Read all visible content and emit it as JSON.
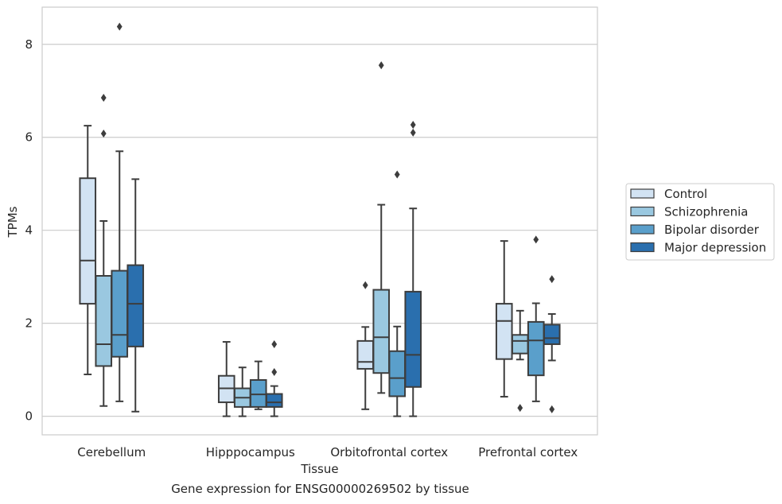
{
  "chart_data": {
    "type": "boxplot",
    "xlabel": "Tissue",
    "ylabel": "TPMs",
    "caption": "Gene expression for ENSG00000269502 by tissue",
    "ylim": [
      -0.4,
      8.8
    ],
    "yticks": [
      "0",
      "2",
      "4",
      "6",
      "8"
    ],
    "grid": "horizontal",
    "legend_position": "right",
    "categories": [
      "Cerebellum",
      "Hipppocampus",
      "Orbitofrontal cortex",
      "Prefrontal cortex"
    ],
    "series": [
      {
        "name": "Control",
        "color": "#d2e3f3",
        "boxes": [
          {
            "whislo": 0.9,
            "q1": 2.42,
            "med": 3.35,
            "q3": 5.12,
            "whishi": 6.25,
            "fliers": []
          },
          {
            "whislo": 0.0,
            "q1": 0.3,
            "med": 0.6,
            "q3": 0.87,
            "whishi": 1.6,
            "fliers": []
          },
          {
            "whislo": 0.15,
            "q1": 1.02,
            "med": 1.17,
            "q3": 1.62,
            "whishi": 1.92,
            "fliers": [
              2.82
            ]
          },
          {
            "whislo": 0.42,
            "q1": 1.23,
            "med": 2.05,
            "q3": 2.42,
            "whishi": 3.77,
            "fliers": []
          }
        ]
      },
      {
        "name": "Schizophrenia",
        "color": "#9ac8e0",
        "boxes": [
          {
            "whislo": 0.22,
            "q1": 1.08,
            "med": 1.55,
            "q3": 3.02,
            "whishi": 4.2,
            "fliers": [
              6.08,
              6.85
            ]
          },
          {
            "whislo": 0.0,
            "q1": 0.2,
            "med": 0.4,
            "q3": 0.6,
            "whishi": 1.05,
            "fliers": []
          },
          {
            "whislo": 0.5,
            "q1": 0.93,
            "med": 1.7,
            "q3": 2.72,
            "whishi": 4.55,
            "fliers": [
              7.55
            ]
          },
          {
            "whislo": 1.22,
            "q1": 1.35,
            "med": 1.62,
            "q3": 1.75,
            "whishi": 2.27,
            "fliers": [
              0.18
            ]
          }
        ]
      },
      {
        "name": "Bipolar disorder",
        "color": "#5a9fcb",
        "boxes": [
          {
            "whislo": 0.32,
            "q1": 1.28,
            "med": 1.75,
            "q3": 3.13,
            "whishi": 5.7,
            "fliers": [
              8.38
            ]
          },
          {
            "whislo": 0.15,
            "q1": 0.2,
            "med": 0.47,
            "q3": 0.78,
            "whishi": 1.18,
            "fliers": []
          },
          {
            "whislo": 0.0,
            "q1": 0.43,
            "med": 0.82,
            "q3": 1.4,
            "whishi": 1.93,
            "fliers": [
              5.2
            ]
          },
          {
            "whislo": 0.32,
            "q1": 0.88,
            "med": 1.63,
            "q3": 2.03,
            "whishi": 2.43,
            "fliers": [
              3.8
            ]
          }
        ]
      },
      {
        "name": "Major depression",
        "color": "#2a6fae",
        "boxes": [
          {
            "whislo": 0.1,
            "q1": 1.5,
            "med": 2.42,
            "q3": 3.25,
            "whishi": 5.1,
            "fliers": []
          },
          {
            "whislo": 0.0,
            "q1": 0.2,
            "med": 0.3,
            "q3": 0.48,
            "whishi": 0.65,
            "fliers": [
              0.95,
              1.55
            ]
          },
          {
            "whislo": 0.0,
            "q1": 0.63,
            "med": 1.32,
            "q3": 2.68,
            "whishi": 4.47,
            "fliers": [
              6.1,
              6.27
            ]
          },
          {
            "whislo": 1.2,
            "q1": 1.55,
            "med": 1.68,
            "q3": 1.97,
            "whishi": 2.2,
            "fliers": [
              0.15,
              2.95
            ]
          }
        ]
      }
    ]
  }
}
